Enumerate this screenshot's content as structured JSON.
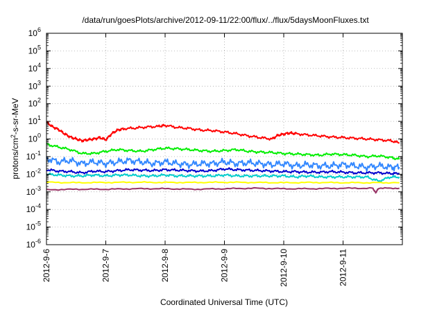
{
  "chart_data": {
    "type": "line",
    "title": "/data/run/goesPlots/archive/2012-09-11/22:00/flux/../flux/5daysMoonFluxes.txt",
    "xlabel": "Coordinated Universal Time (UTC)",
    "ylabel": "protons/cm2-s-sr-MeV",
    "ylabel_parts": {
      "base": "protons/cm",
      "sup": "2",
      "rest": "-s-sr-MeV"
    },
    "yscale": "log",
    "ylim": [
      1e-06,
      1000000.0
    ],
    "xlim": [
      0,
      6
    ],
    "grid": true,
    "legend": "none",
    "x_ticks": [
      {
        "x": 0,
        "label": "2012-9-6"
      },
      {
        "x": 1,
        "label": "2012-9-7"
      },
      {
        "x": 2,
        "label": "2012-9-8"
      },
      {
        "x": 3,
        "label": "2012-9-9"
      },
      {
        "x": 4,
        "label": "2012-9-10"
      },
      {
        "x": 5,
        "label": "2012-9-11"
      }
    ],
    "y_ticks": [
      {
        "exp": -6,
        "label": "-6"
      },
      {
        "exp": -5,
        "label": "-5"
      },
      {
        "exp": -4,
        "label": "-4"
      },
      {
        "exp": -3,
        "label": "-3"
      },
      {
        "exp": -2,
        "label": "-2"
      },
      {
        "exp": -1,
        "label": "-1"
      },
      {
        "exp": 0,
        "label": "0"
      },
      {
        "exp": 1,
        "label": "1"
      },
      {
        "exp": 2,
        "label": "2"
      },
      {
        "exp": 3,
        "label": "3"
      },
      {
        "exp": 4,
        "label": "4"
      },
      {
        "exp": 5,
        "label": "5"
      },
      {
        "exp": 6,
        "label": "6"
      }
    ],
    "y_tick_base": "10",
    "x_units": "days since 2012-9-6 00:00 UTC",
    "series": [
      {
        "color": "#ff0000",
        "x": [
          0,
          0.1,
          0.2,
          0.3,
          0.4,
          0.5,
          0.6,
          0.7,
          0.8,
          0.9,
          1.0,
          1.1,
          1.2,
          1.3,
          1.5,
          1.7,
          1.9,
          2.0,
          2.2,
          2.4,
          2.6,
          2.8,
          3.0,
          3.2,
          3.4,
          3.6,
          3.8,
          3.9,
          4.0,
          4.1,
          4.2,
          4.4,
          4.6,
          4.8,
          5.0,
          5.2,
          5.4,
          5.6,
          5.8,
          5.95
        ],
        "y": [
          9,
          5,
          3.5,
          2,
          1.3,
          1.0,
          0.8,
          0.9,
          1.0,
          1.2,
          0.9,
          2.0,
          3.2,
          3.8,
          4.2,
          4.8,
          5.2,
          6.0,
          4.5,
          4.0,
          3.2,
          3.0,
          2.5,
          2.0,
          1.5,
          1.2,
          1.0,
          1.6,
          1.9,
          2.2,
          2.0,
          1.7,
          1.5,
          1.3,
          1.2,
          1.1,
          1.0,
          0.9,
          0.8,
          0.6
        ]
      },
      {
        "color": "#00ee00",
        "x": [
          0,
          0.2,
          0.4,
          0.6,
          0.8,
          1.0,
          1.2,
          1.4,
          1.6,
          1.8,
          2.0,
          2.2,
          2.4,
          2.6,
          2.8,
          3.0,
          3.2,
          3.4,
          3.6,
          3.8,
          4.0,
          4.2,
          4.4,
          4.6,
          4.8,
          5.0,
          5.2,
          5.4,
          5.6,
          5.8,
          5.95
        ],
        "y": [
          0.5,
          0.35,
          0.25,
          0.15,
          0.15,
          0.2,
          0.25,
          0.22,
          0.2,
          0.25,
          0.3,
          0.28,
          0.25,
          0.22,
          0.2,
          0.22,
          0.25,
          0.2,
          0.18,
          0.17,
          0.15,
          0.14,
          0.13,
          0.12,
          0.14,
          0.13,
          0.12,
          0.1,
          0.11,
          0.09,
          0.07
        ]
      },
      {
        "color": "#3388ff",
        "x": [
          0,
          0.2,
          0.4,
          0.6,
          0.8,
          1.0,
          1.2,
          1.4,
          1.6,
          1.8,
          2.0,
          2.2,
          2.4,
          2.6,
          2.8,
          3.0,
          3.2,
          3.4,
          3.6,
          3.8,
          4.0,
          4.2,
          4.4,
          4.6,
          4.8,
          5.0,
          5.2,
          5.4,
          5.6,
          5.8,
          5.95
        ],
        "y": [
          0.08,
          0.05,
          0.06,
          0.04,
          0.05,
          0.04,
          0.05,
          0.06,
          0.05,
          0.04,
          0.05,
          0.04,
          0.035,
          0.04,
          0.04,
          0.05,
          0.04,
          0.045,
          0.04,
          0.035,
          0.04,
          0.03,
          0.035,
          0.03,
          0.03,
          0.035,
          0.03,
          0.025,
          0.03,
          0.025,
          0.025
        ]
      },
      {
        "color": "#0000cc",
        "x": [
          0,
          0.2,
          0.4,
          0.6,
          0.8,
          1.0,
          1.2,
          1.4,
          1.6,
          1.8,
          2.0,
          2.2,
          2.4,
          2.6,
          2.8,
          3.0,
          3.2,
          3.4,
          3.6,
          3.8,
          4.0,
          4.2,
          4.4,
          4.6,
          4.8,
          5.0,
          5.2,
          5.4,
          5.6,
          5.8,
          5.95
        ],
        "y": [
          0.018,
          0.015,
          0.014,
          0.012,
          0.015,
          0.014,
          0.016,
          0.018,
          0.017,
          0.016,
          0.018,
          0.017,
          0.016,
          0.015,
          0.016,
          0.02,
          0.018,
          0.017,
          0.016,
          0.015,
          0.014,
          0.014,
          0.013,
          0.013,
          0.014,
          0.013,
          0.012,
          0.012,
          0.012,
          0.011,
          0.011
        ]
      },
      {
        "color": "#00cccc",
        "x": [
          0,
          0.2,
          0.4,
          0.6,
          0.8,
          1.0,
          1.2,
          1.4,
          1.6,
          1.8,
          2.0,
          2.2,
          2.4,
          2.6,
          2.8,
          3.0,
          3.2,
          3.4,
          3.6,
          3.8,
          4.0,
          4.2,
          4.4,
          4.6,
          4.8,
          5.0,
          5.2,
          5.4,
          5.6,
          5.8,
          5.95
        ],
        "y": [
          0.01,
          0.009,
          0.008,
          0.008,
          0.009,
          0.008,
          0.009,
          0.009,
          0.008,
          0.008,
          0.009,
          0.008,
          0.008,
          0.008,
          0.008,
          0.009,
          0.008,
          0.008,
          0.008,
          0.008,
          0.008,
          0.007,
          0.008,
          0.007,
          0.007,
          0.007,
          0.007,
          0.007,
          0.004,
          0.007,
          0.007
        ]
      },
      {
        "color": "#ffff00",
        "x": [
          0,
          0.5,
          1.0,
          1.5,
          2.0,
          2.5,
          3.0,
          3.5,
          4.0,
          4.5,
          5.0,
          5.5,
          5.95
        ],
        "y": [
          0.0035,
          0.0033,
          0.0034,
          0.0035,
          0.0034,
          0.0034,
          0.0035,
          0.0034,
          0.0033,
          0.0034,
          0.0033,
          0.0033,
          0.0033
        ]
      },
      {
        "color": "#993366",
        "x": [
          0,
          0.5,
          1.0,
          1.5,
          2.0,
          2.5,
          3.0,
          3.5,
          4.0,
          4.5,
          5.0,
          5.5,
          5.55,
          5.6,
          5.95
        ],
        "y": [
          0.0013,
          0.0014,
          0.0014,
          0.0015,
          0.0015,
          0.0014,
          0.0015,
          0.0016,
          0.0015,
          0.0015,
          0.0016,
          0.0016,
          0.0009,
          0.0016,
          0.0016
        ]
      }
    ]
  }
}
